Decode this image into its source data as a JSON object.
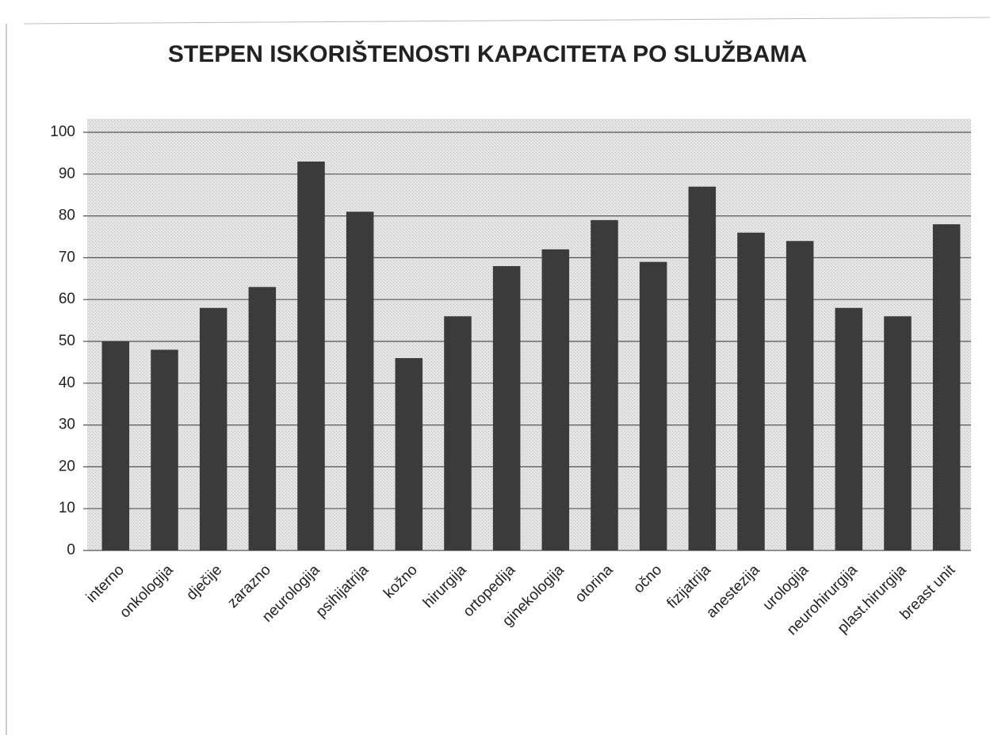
{
  "chart_data": {
    "type": "bar",
    "title": "STEPEN ISKORIŠTENOSTI KAPACITETA PO SLUŽBAMA",
    "categories": [
      "interno",
      "onkologija",
      "dječije",
      "zarazno",
      "neurologija",
      "psihijatrija",
      "kožno",
      "hirurgija",
      "ortopedija",
      "ginekologija",
      "otorina",
      "očno",
      "fizijatrija",
      "anestezija",
      "urologija",
      "neurohirurgija",
      "plast.hirurgija",
      "breast unit"
    ],
    "values": [
      50,
      48,
      58,
      63,
      93,
      81,
      46,
      56,
      68,
      72,
      79,
      69,
      87,
      76,
      74,
      58,
      56,
      78
    ],
    "color": "#3b3b3b",
    "ylim": [
      0,
      100
    ],
    "yticks": [
      0,
      10,
      20,
      30,
      40,
      50,
      60,
      70,
      80,
      90,
      100
    ],
    "grid": true
  }
}
